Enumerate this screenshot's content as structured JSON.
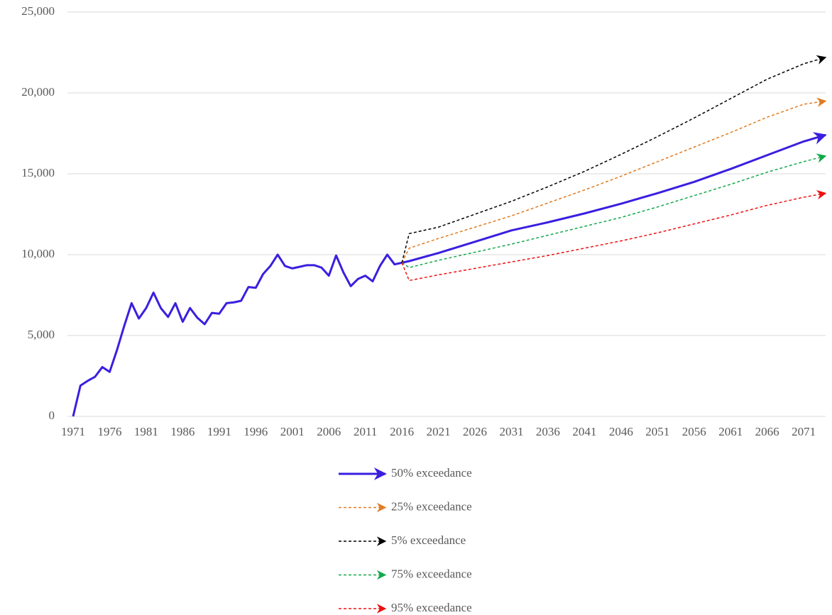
{
  "chart_data": {
    "type": "line",
    "xlim": [
      1971,
      2074
    ],
    "xticks": [
      1971,
      1976,
      1981,
      1986,
      1991,
      1996,
      2001,
      2006,
      2011,
      2016,
      2021,
      2026,
      2031,
      2036,
      2041,
      2046,
      2051,
      2056,
      2061,
      2066,
      2071
    ],
    "ylim": [
      0,
      25000
    ],
    "yticks": [
      {
        "value": 0,
        "label": "0"
      },
      {
        "value": 5000,
        "label": "5,000"
      },
      {
        "value": 10000,
        "label": "10,000"
      },
      {
        "value": 15000,
        "label": "15,000"
      },
      {
        "value": 20000,
        "label": "20,000"
      },
      {
        "value": 25000,
        "label": "25,000"
      }
    ],
    "grid": true,
    "legend": "bottom",
    "series": [
      {
        "name": "50% exceedance",
        "color": "#3a1fe0",
        "dashed": false,
        "x": [
          1971,
          1972,
          1973,
          1974,
          1975,
          1976,
          1977,
          1978,
          1979,
          1980,
          1981,
          1982,
          1983,
          1984,
          1985,
          1986,
          1987,
          1988,
          1989,
          1990,
          1991,
          1992,
          1993,
          1994,
          1995,
          1996,
          1997,
          1998,
          1999,
          2000,
          2001,
          2002,
          2003,
          2004,
          2005,
          2006,
          2007,
          2008,
          2009,
          2010,
          2011,
          2012,
          2013,
          2014,
          2015,
          2016,
          2017,
          2021,
          2026,
          2031,
          2036,
          2041,
          2046,
          2051,
          2056,
          2061,
          2066,
          2071,
          2074
        ],
        "values": [
          0,
          1900,
          2200,
          2450,
          3050,
          2750,
          4100,
          5600,
          7000,
          6050,
          6700,
          7650,
          6700,
          6150,
          7000,
          5850,
          6700,
          6100,
          5700,
          6400,
          6350,
          7000,
          7050,
          7150,
          8000,
          7950,
          8800,
          9300,
          10000,
          9300,
          9150,
          9250,
          9350,
          9350,
          9200,
          8700,
          9950,
          8900,
          8050,
          8500,
          8700,
          8350,
          9300,
          10000,
          9400,
          9500,
          9600,
          10100,
          10800,
          11500,
          12000,
          12550,
          13150,
          13800,
          14500,
          15300,
          16150,
          17000,
          17400
        ]
      },
      {
        "name": "25% exceedance",
        "color": "#e07b20",
        "dashed": true,
        "x": [
          2016,
          2017,
          2021,
          2026,
          2031,
          2036,
          2041,
          2046,
          2051,
          2056,
          2061,
          2066,
          2071,
          2074
        ],
        "values": [
          9500,
          10400,
          11000,
          11700,
          12400,
          13200,
          14000,
          14850,
          15750,
          16650,
          17550,
          18500,
          19300,
          19500
        ]
      },
      {
        "name": "5% exceedance",
        "color": "#000000",
        "dashed": true,
        "x": [
          2016,
          2017,
          2021,
          2026,
          2031,
          2036,
          2041,
          2046,
          2051,
          2056,
          2061,
          2066,
          2071,
          2074
        ],
        "values": [
          9500,
          11300,
          11700,
          12500,
          13300,
          14200,
          15150,
          16200,
          17300,
          18450,
          19650,
          20850,
          21800,
          22200
        ]
      },
      {
        "name": "75% exceedance",
        "color": "#14a84a",
        "dashed": true,
        "x": [
          2016,
          2017,
          2021,
          2026,
          2031,
          2036,
          2041,
          2046,
          2051,
          2056,
          2061,
          2066,
          2071,
          2074
        ],
        "values": [
          9500,
          9200,
          9650,
          10150,
          10650,
          11200,
          11750,
          12300,
          12950,
          13650,
          14350,
          15100,
          15750,
          16100
        ]
      },
      {
        "name": "95% exceedance",
        "color": "#ee1010",
        "dashed": true,
        "x": [
          2016,
          2017,
          2021,
          2026,
          2031,
          2036,
          2041,
          2046,
          2051,
          2056,
          2061,
          2066,
          2071,
          2074
        ],
        "values": [
          9500,
          8400,
          8750,
          9150,
          9550,
          9950,
          10400,
          10850,
          11350,
          11900,
          12450,
          13050,
          13550,
          13800
        ]
      }
    ]
  }
}
